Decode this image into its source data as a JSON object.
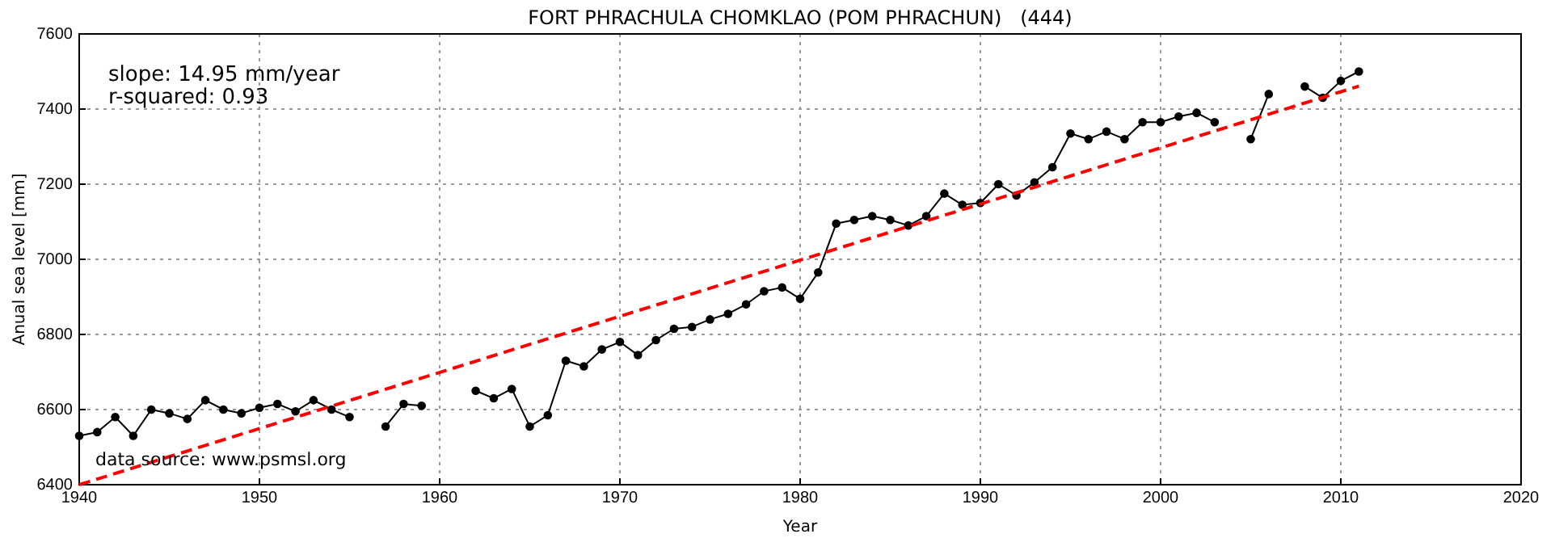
{
  "chart_data": {
    "type": "line",
    "title": "FORT PHRACHULA CHOMKLAO (POM PHRACHUN)   (444)",
    "xlabel": "Year",
    "ylabel": "Anual sea level [mm]",
    "annotations": [
      "slope: 14.95 mm/year",
      "r-squared: 0.93",
      "data source: www.psmsl.org"
    ],
    "series": [
      {
        "color": "#000000",
        "marker": "circle",
        "line_style": "solid",
        "x": [
          1940,
          1941,
          1942,
          1943,
          1944,
          1945,
          1946,
          1947,
          1948,
          1949,
          1950,
          1951,
          1952,
          1953,
          1954,
          1955,
          1956,
          1957,
          1958,
          1959,
          1960,
          1961,
          1962,
          1963,
          1964,
          1965,
          1966,
          1967,
          1968,
          1969,
          1970,
          1971,
          1972,
          1973,
          1974,
          1975,
          1976,
          1977,
          1978,
          1979,
          1980,
          1981,
          1982,
          1983,
          1984,
          1985,
          1986,
          1987,
          1988,
          1989,
          1990,
          1991,
          1992,
          1993,
          1994,
          1995,
          1996,
          1997,
          1998,
          1999,
          2000,
          2001,
          2002,
          2003,
          2004,
          2005,
          2006,
          2007,
          2008,
          2009,
          2010,
          2011
        ],
        "values": [
          6530,
          6540,
          6580,
          6530,
          6600,
          6590,
          6575,
          6625,
          6600,
          6590,
          6605,
          6615,
          6595,
          6625,
          6600,
          6580,
          null,
          6555,
          6615,
          6610,
          null,
          null,
          6650,
          6630,
          6655,
          6555,
          6585,
          6730,
          6715,
          6760,
          6780,
          6745,
          6785,
          6815,
          6820,
          6840,
          6855,
          6880,
          6915,
          6925,
          6895,
          6965,
          7095,
          7105,
          7115,
          7105,
          7090,
          7115,
          7175,
          7145,
          7150,
          7200,
          7170,
          7205,
          7245,
          7335,
          7320,
          7340,
          7320,
          7365,
          7365,
          7380,
          7390,
          7365,
          null,
          7320,
          7440,
          null,
          7460,
          7430,
          7475,
          7500
        ]
      },
      {
        "color": "#ff0000",
        "marker": "none",
        "line_style": "dashed",
        "x": [
          1940,
          2011
        ],
        "values": [
          6400,
          7461
        ]
      }
    ],
    "xlim": [
      1940,
      2020
    ],
    "xticks": [
      1940,
      1950,
      1960,
      1970,
      1980,
      1990,
      2000,
      2010,
      2020
    ],
    "ylim": [
      6400,
      7600
    ],
    "yticks": [
      6400,
      6600,
      6800,
      7000,
      7200,
      7400,
      7600
    ],
    "grid": true
  }
}
